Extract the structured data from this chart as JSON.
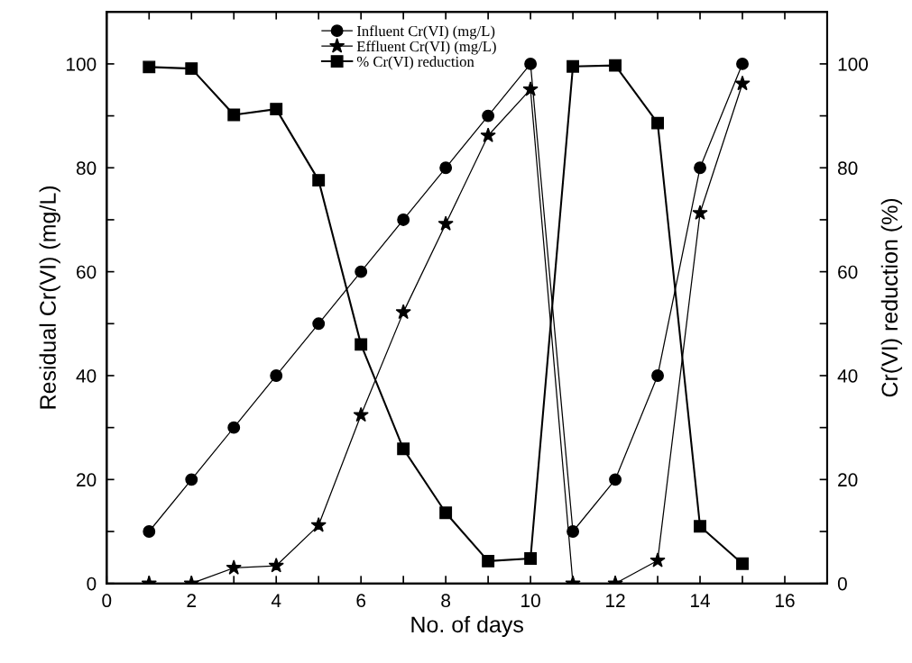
{
  "chart_data": {
    "type": "line",
    "xlabel": "No. of days",
    "ylabel": "Residual Cr(VI) (mg/L)",
    "y2label": "Cr(VI) reduction (%)",
    "x": [
      1,
      2,
      3,
      4,
      5,
      6,
      7,
      8,
      9,
      10,
      11,
      12,
      13,
      14,
      15
    ],
    "series": [
      {
        "name": "Influent Cr(VI) (mg/L)",
        "color": "#000000",
        "marker": "circle",
        "values": [
          10,
          20,
          30,
          40,
          50,
          60,
          70,
          80,
          90,
          100,
          10,
          20,
          40,
          80,
          100
        ]
      },
      {
        "name": "Effluent Cr(VI) (mg/L)",
        "color": "#000000",
        "marker": "star",
        "values": [
          0,
          0,
          3.0,
          3.4,
          11.2,
          32.4,
          52.2,
          69.2,
          86.2,
          95.1,
          0,
          0,
          4.4,
          71.3,
          96.2
        ]
      },
      {
        "name": "% Cr(VI) reduction",
        "color": "#000000",
        "marker": "square",
        "axis": "y2",
        "values": [
          99.4,
          99.1,
          90.2,
          91.3,
          77.6,
          46.0,
          25.9,
          13.6,
          4.3,
          4.8,
          99.5,
          99.7,
          88.6,
          11.0,
          3.8
        ]
      }
    ],
    "xlim": [
      0,
      17
    ],
    "xticks": [
      0,
      {
        "value": 1,
        "label": null
      },
      2,
      {
        "value": 3,
        "label": null
      },
      4,
      {
        "value": 5,
        "label": null
      },
      6,
      {
        "value": 7,
        "label": null
      },
      8,
      {
        "value": 9,
        "label": null
      },
      10,
      {
        "value": 11,
        "label": null
      },
      12,
      {
        "value": 13,
        "label": null
      },
      14,
      {
        "value": 15,
        "label": null
      },
      16
    ],
    "ylim": [
      0,
      110
    ],
    "yticks": [
      0,
      {
        "value": 10,
        "label": null
      },
      20,
      {
        "value": 30,
        "label": null
      },
      40,
      {
        "value": 50,
        "label": null
      },
      60,
      {
        "value": 70,
        "label": null
      },
      80,
      {
        "value": 90,
        "label": null
      },
      100
    ],
    "y2lim": [
      0,
      110
    ],
    "y2ticks": [
      0,
      {
        "value": 10,
        "label": null
      },
      20,
      {
        "value": 30,
        "label": null
      },
      40,
      {
        "value": 50,
        "label": null
      },
      60,
      {
        "value": 70,
        "label": null
      },
      80,
      {
        "value": 90,
        "label": null
      },
      100
    ],
    "legend": "top",
    "grid": false,
    "line_style": "solid"
  }
}
